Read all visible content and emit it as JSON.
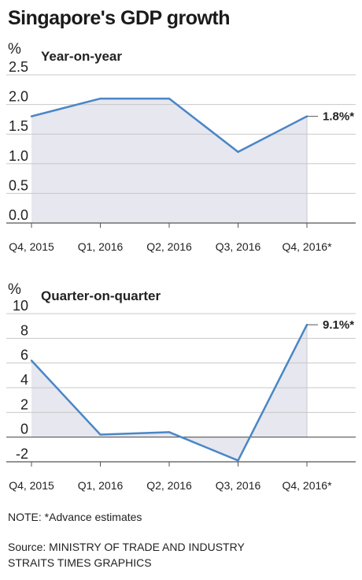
{
  "title": "Singapore's GDP growth",
  "chart_data": [
    {
      "type": "area",
      "unit_label": "%",
      "subtitle": "Year-on-year",
      "categories": [
        "Q4, 2015",
        "Q1, 2016",
        "Q2, 2016",
        "Q3, 2016",
        "Q4, 2016*"
      ],
      "values": [
        1.8,
        2.1,
        2.1,
        1.2,
        1.8
      ],
      "yticks": [
        "0.0",
        "0.5",
        "1.0",
        "1.5",
        "2.0",
        "2.5"
      ],
      "ylim": [
        0,
        2.5
      ],
      "end_label": "1.8%*",
      "grid": true,
      "line_color": "#4a86c5",
      "fill_color": "#e6e7ef"
    },
    {
      "type": "area",
      "unit_label": "%",
      "subtitle": "Quarter-on-quarter",
      "categories": [
        "Q4, 2015",
        "Q1, 2016",
        "Q2, 2016",
        "Q3, 2016",
        "Q4, 2016*"
      ],
      "values": [
        6.2,
        0.2,
        0.4,
        -1.9,
        9.1
      ],
      "yticks": [
        "-2",
        "0",
        "2",
        "4",
        "6",
        "8",
        "10"
      ],
      "ylim": [
        -2,
        10
      ],
      "end_label": "9.1%*",
      "grid": true,
      "line_color": "#4a86c5",
      "fill_color": "#e6e7ef"
    }
  ],
  "note": "NOTE: *Advance estimates",
  "source_line1": "Source: MINISTRY OF TRADE AND INDUSTRY",
  "source_line2": "STRAITS TIMES GRAPHICS"
}
